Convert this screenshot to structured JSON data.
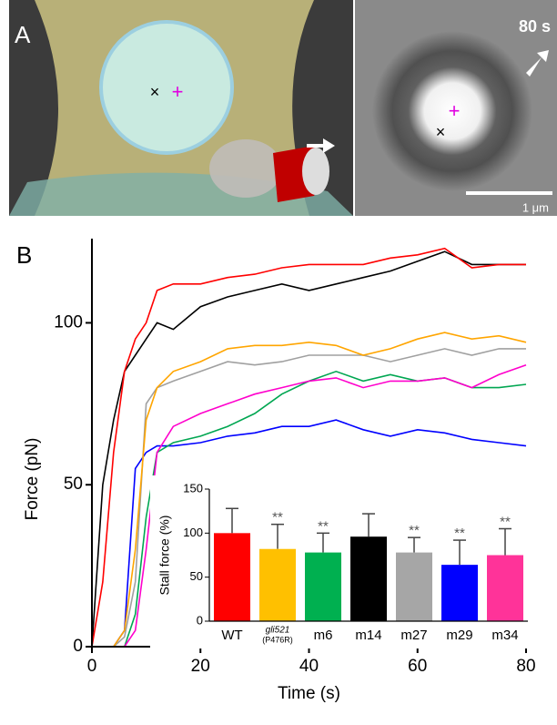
{
  "panel_a": {
    "label": "A",
    "time": "80 s",
    "scale": "1 μm"
  },
  "chart_data": [
    {
      "type": "line",
      "panel_label": "B",
      "xlabel": "Time (s)",
      "ylabel": "Force (pN)",
      "xlim": [
        0,
        80
      ],
      "ylim": [
        0,
        126
      ],
      "xticks": [
        0,
        20,
        40,
        60,
        80
      ],
      "yticks": [
        0,
        50,
        100
      ],
      "x": [
        0,
        2,
        4,
        6,
        8,
        10,
        12,
        15,
        20,
        25,
        30,
        35,
        40,
        45,
        50,
        55,
        60,
        65,
        70,
        75,
        80
      ],
      "series": [
        {
          "color": "#0000ff",
          "values": [
            0,
            0,
            0,
            5,
            55,
            60,
            62,
            62,
            63,
            65,
            66,
            68,
            68,
            70,
            67,
            65,
            67,
            66,
            64,
            63,
            62
          ]
        },
        {
          "color": "#00a651",
          "values": [
            0,
            0,
            0,
            0,
            10,
            40,
            60,
            63,
            65,
            68,
            72,
            78,
            82,
            85,
            82,
            84,
            82,
            83,
            80,
            80,
            81
          ]
        },
        {
          "color": "#ff00cc",
          "values": [
            0,
            0,
            0,
            0,
            5,
            30,
            60,
            68,
            72,
            75,
            78,
            80,
            82,
            83,
            80,
            82,
            82,
            83,
            80,
            84,
            87
          ]
        },
        {
          "color": "#a0a0a0",
          "values": [
            0,
            0,
            0,
            3,
            20,
            75,
            80,
            82,
            85,
            88,
            87,
            88,
            90,
            90,
            90,
            88,
            90,
            92,
            90,
            92,
            92
          ]
        },
        {
          "color": "#ffa500",
          "values": [
            0,
            0,
            0,
            5,
            30,
            70,
            80,
            85,
            88,
            92,
            93,
            93,
            94,
            93,
            90,
            92,
            95,
            97,
            95,
            96,
            94
          ]
        },
        {
          "color": "#000000",
          "values": [
            0,
            50,
            70,
            85,
            90,
            95,
            100,
            98,
            105,
            108,
            110,
            112,
            110,
            112,
            114,
            116,
            119,
            122,
            118,
            118,
            118
          ]
        },
        {
          "color": "#ff0000",
          "values": [
            0,
            20,
            60,
            85,
            95,
            100,
            110,
            112,
            112,
            114,
            115,
            117,
            118,
            118,
            118,
            120,
            121,
            123,
            117,
            118,
            118
          ]
        }
      ]
    },
    {
      "type": "bar",
      "ylabel": "Stall force (%)",
      "ylim": [
        0,
        150
      ],
      "yticks": [
        0,
        50,
        100,
        150
      ],
      "categories": [
        "WT",
        "gli521",
        "m6",
        "m14",
        "m27",
        "m29",
        "m34"
      ],
      "category_sublabels": [
        null,
        "(P476R)",
        null,
        null,
        null,
        null,
        null
      ],
      "values": [
        100,
        82,
        78,
        96,
        78,
        64,
        75
      ],
      "errors": [
        28,
        28,
        22,
        26,
        17,
        28,
        30
      ],
      "significance": [
        null,
        "**",
        "**",
        null,
        "**",
        "**",
        "**"
      ],
      "colors": [
        "#ff0000",
        "#ffc000",
        "#00b050",
        "#000000",
        "#a6a6a6",
        "#0000ff",
        "#ff3399"
      ]
    }
  ]
}
